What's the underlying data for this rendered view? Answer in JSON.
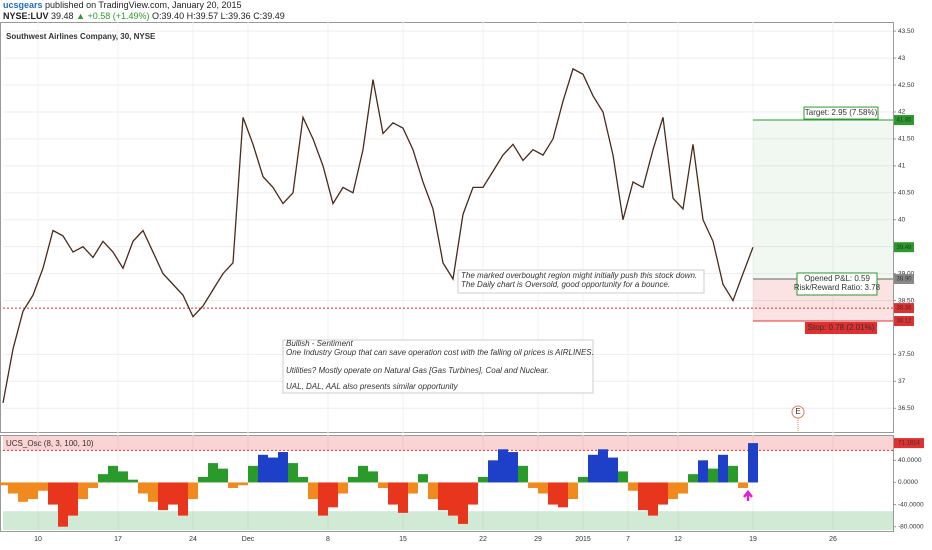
{
  "header": {
    "author": "ucsgears",
    "published": "published on TradingView.com, January 20, 2015",
    "ticker": [
      "NYSE:LUV",
      "39.48",
      "▲ +0.58 (+1.49%)",
      "O:39.40",
      "H:39.57",
      "L:39.36",
      "C:39.49"
    ]
  },
  "chart_data": [
    {
      "type": "line",
      "title": "Southwest Airlines Company, 30, NYSE",
      "color": "#4a2a1a",
      "x": [
        0,
        2,
        4,
        6,
        8,
        10,
        12,
        14,
        16,
        18,
        20,
        22,
        24,
        26,
        28,
        30,
        32,
        34,
        36,
        38,
        40,
        42,
        44,
        46,
        48,
        50,
        52,
        54,
        56,
        58,
        60,
        62,
        64,
        66,
        68,
        70,
        72,
        74,
        76,
        78,
        80,
        82,
        84,
        86,
        88,
        90,
        92,
        94,
        96,
        98,
        100,
        102,
        104,
        106,
        108,
        110,
        112,
        114,
        116,
        118,
        120,
        122,
        124,
        126,
        128,
        130,
        132,
        134,
        136,
        138,
        140,
        142,
        144,
        146,
        148,
        150
      ],
      "values": [
        36.6,
        37.6,
        38.3,
        38.6,
        39.1,
        39.8,
        39.7,
        39.4,
        39.5,
        39.3,
        39.6,
        39.4,
        39.1,
        39.6,
        39.8,
        39.4,
        39.0,
        38.8,
        38.6,
        38.2,
        38.4,
        38.7,
        39.0,
        39.2,
        41.9,
        41.4,
        40.8,
        40.6,
        40.3,
        40.5,
        41.9,
        41.5,
        41.0,
        40.3,
        40.6,
        40.5,
        41.3,
        42.6,
        41.6,
        41.8,
        41.7,
        41.3,
        40.7,
        40.2,
        39.2,
        38.9,
        40.1,
        40.6,
        40.6,
        40.9,
        41.2,
        41.4,
        41.1,
        41.3,
        41.2,
        41.5,
        42.2,
        42.8,
        42.7,
        42.3,
        42.0,
        41.2,
        40.0,
        40.7,
        40.6,
        41.3,
        41.9,
        40.4,
        40.2,
        41.4,
        40.0,
        39.6,
        38.8,
        38.5,
        39.0,
        39.49
      ],
      "xlim": [
        0,
        178
      ],
      "xticks": [
        {
          "value": 7,
          "label": "10"
        },
        {
          "value": 23,
          "label": "17"
        },
        {
          "value": 38,
          "label": "24"
        },
        {
          "value": 49,
          "label": "Dec"
        },
        {
          "value": 65,
          "label": "8"
        },
        {
          "value": 80,
          "label": "15"
        },
        {
          "value": 96,
          "label": "22"
        },
        {
          "value": 107,
          "label": "29"
        },
        {
          "value": 116,
          "label": "2015"
        },
        {
          "value": 125,
          "label": "7"
        },
        {
          "value": 135,
          "label": "12"
        },
        {
          "value": 150,
          "label": "19"
        },
        {
          "value": 166,
          "label": "26"
        }
      ],
      "ylim": [
        36.06,
        43.67
      ],
      "yticks": [
        {
          "value": 36.5,
          "label": "36.50"
        },
        37,
        {
          "value": 37.5,
          "label": "37.50"
        },
        {
          "value": 38.5,
          "label": "38.50"
        },
        {
          "value": 39,
          "label": "39.00"
        },
        {
          "value": 39.5,
          "label": "39.50"
        },
        40,
        {
          "value": 40.5,
          "label": "40.50"
        },
        41,
        {
          "value": 41.5,
          "label": "41.50"
        },
        42,
        {
          "value": 42.5,
          "label": "42.50"
        },
        43,
        {
          "value": 43.5,
          "label": "43.50"
        }
      ],
      "grid": true,
      "position": {
        "start": 150,
        "entry": {
          "value": 38.9,
          "label": "38.90"
        },
        "target": 41.85,
        "stop": 38.12,
        "target_text": "Target: 2.95 (7.58%)",
        "pnl_text": "Opened P&L: 0.59",
        "rr_text": "Risk/Reward Ratio: 3.78",
        "stop_text": "Stop: 0.78 (2.01%)"
      },
      "last_price": 39.49,
      "stop_line": 38.36,
      "earnings_marker": "E",
      "notes": [
        [
          "The marked overbought region might initially push this stock down.",
          "The Daily chart is Oversold, good opportunity for a bounce."
        ],
        [
          "Bullish - Sentiment",
          "One Industry Group that can save operation cost with the falling oil prices is AIRLINES.",
          "Utilities?  Mostly operate on Natural Gas [Gas Turbines], Coal and Nuclear.",
          "UAL, DAL, AAL also presents similar opportunity"
        ]
      ]
    },
    {
      "type": "bar",
      "title": "UCS_Osc (8, 3, 100, 10)",
      "up_color": "#2a9a2a",
      "up_color2": "#1e3fc8",
      "down_color": "#e8361e",
      "down_color2": "#f08a1e",
      "x": [
        0,
        2,
        4,
        6,
        8,
        10,
        12,
        14,
        16,
        18,
        20,
        22,
        24,
        26,
        28,
        30,
        32,
        34,
        36,
        38,
        40,
        42,
        44,
        46,
        48,
        50,
        52,
        54,
        56,
        58,
        60,
        62,
        64,
        66,
        68,
        70,
        72,
        74,
        76,
        78,
        80,
        82,
        84,
        86,
        88,
        90,
        92,
        94,
        96,
        98,
        100,
        102,
        104,
        106,
        108,
        110,
        112,
        114,
        116,
        118,
        120,
        122,
        124,
        126,
        128,
        130,
        132,
        134,
        136,
        138,
        140,
        142,
        144,
        146,
        148,
        150
      ],
      "values": [
        -5,
        -20,
        -35,
        -30,
        -15,
        -40,
        -80,
        -60,
        -30,
        -10,
        15,
        30,
        20,
        5,
        -20,
        -35,
        -50,
        -40,
        -60,
        -30,
        10,
        35,
        25,
        -10,
        -5,
        30,
        50,
        45,
        55,
        35,
        10,
        -30,
        -60,
        -45,
        -20,
        10,
        30,
        20,
        -10,
        -40,
        -55,
        -20,
        15,
        -30,
        -50,
        -60,
        -75,
        -40,
        10,
        40,
        60,
        55,
        30,
        -10,
        -20,
        -40,
        -45,
        -30,
        10,
        50,
        60,
        45,
        20,
        -15,
        -50,
        -60,
        -40,
        -30,
        -20,
        15,
        40,
        25,
        50,
        30,
        -10,
        71.1814
      ],
      "xlim": [
        0,
        178
      ],
      "ylim": [
        -86,
        84
      ],
      "yticks": [
        {
          "value": 40,
          "label": "40.0000"
        },
        {
          "value": 0,
          "label": "0.0000"
        },
        {
          "value": -40,
          "label": "-40.0000"
        },
        {
          "value": -80,
          "label": "-80.0000"
        }
      ],
      "overbought": 58,
      "oversold": -52
    }
  ]
}
